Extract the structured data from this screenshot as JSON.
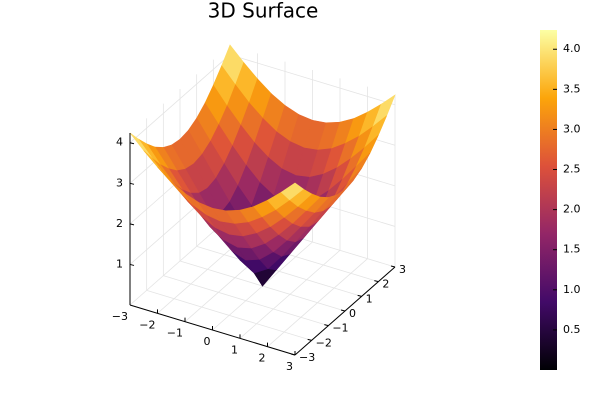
{
  "chart_data": {
    "type": "surface",
    "title": "3D Surface",
    "colormap": "inferno",
    "grid": true,
    "x": [
      -3,
      -2.5,
      -2,
      -1.5,
      -1,
      -0.5,
      0,
      0.5,
      1,
      1.5,
      2,
      2.5,
      3
    ],
    "y": [
      -3,
      -2.5,
      -2,
      -1.5,
      -1,
      -0.5,
      0,
      0.5,
      1,
      1.5,
      2,
      2.5,
      3
    ],
    "z": [
      [
        4.24,
        3.91,
        3.61,
        3.35,
        3.16,
        3.04,
        3,
        3.04,
        3.16,
        3.35,
        3.61,
        3.91,
        4.24
      ],
      [
        3.91,
        3.54,
        3.2,
        2.92,
        2.69,
        2.55,
        2.5,
        2.55,
        2.69,
        2.92,
        3.2,
        3.54,
        3.91
      ],
      [
        3.61,
        3.2,
        2.83,
        2.5,
        2.24,
        2.06,
        2,
        2.06,
        2.24,
        2.5,
        2.83,
        3.2,
        3.61
      ],
      [
        3.35,
        2.92,
        2.5,
        2.12,
        1.8,
        1.58,
        1.5,
        1.58,
        1.8,
        2.12,
        2.5,
        2.92,
        3.35
      ],
      [
        3.16,
        2.69,
        2.24,
        1.8,
        1.41,
        1.12,
        1,
        1.12,
        1.41,
        1.8,
        2.24,
        2.69,
        3.16
      ],
      [
        3.04,
        2.55,
        2.06,
        1.58,
        1.12,
        0.71,
        0.5,
        0.71,
        1.12,
        1.58,
        2.06,
        2.55,
        3.04
      ],
      [
        3,
        2.5,
        2,
        1.5,
        1,
        0.5,
        0,
        0.5,
        1,
        1.5,
        2,
        2.5,
        3
      ],
      [
        3.04,
        2.55,
        2.06,
        1.58,
        1.12,
        0.71,
        0.5,
        0.71,
        1.12,
        1.58,
        2.06,
        2.55,
        3.04
      ],
      [
        3.16,
        2.69,
        2.24,
        1.8,
        1.41,
        1.12,
        1,
        1.12,
        1.41,
        1.8,
        2.24,
        2.69,
        3.16
      ],
      [
        3.35,
        2.92,
        2.5,
        2.12,
        1.8,
        1.58,
        1.5,
        1.58,
        1.8,
        2.12,
        2.5,
        2.92,
        3.35
      ],
      [
        3.61,
        3.2,
        2.83,
        2.5,
        2.24,
        2.06,
        2,
        2.06,
        2.24,
        2.5,
        2.83,
        3.2,
        3.61
      ],
      [
        3.91,
        3.54,
        3.2,
        2.92,
        2.69,
        2.55,
        2.5,
        2.55,
        2.69,
        2.92,
        3.2,
        3.54,
        3.91
      ],
      [
        4.24,
        3.91,
        3.61,
        3.35,
        3.16,
        3.04,
        3,
        3.04,
        3.16,
        3.35,
        3.61,
        3.91,
        4.24
      ]
    ],
    "xlim": [
      -3,
      3
    ],
    "ylim": [
      -3,
      3
    ],
    "zlim": [
      0,
      4.24
    ],
    "xticks": [
      {
        "value": -3,
        "label": "−3"
      },
      {
        "value": -2,
        "label": "−2"
      },
      {
        "value": -1,
        "label": "−1"
      },
      0,
      1,
      2,
      3
    ],
    "yticks": [
      {
        "value": -3,
        "label": "−3"
      },
      {
        "value": -2,
        "label": "−2"
      },
      {
        "value": -1,
        "label": "−1"
      },
      0,
      1,
      2,
      3
    ],
    "zticks": [
      1,
      2,
      3,
      4
    ],
    "clim": [
      0,
      4.24
    ],
    "cticks": [
      0.5,
      {
        "value": 1,
        "label": "1.0"
      },
      1.5,
      {
        "value": 2,
        "label": "2.0"
      },
      2.5,
      {
        "value": 3,
        "label": "3.0"
      },
      3.5,
      {
        "value": 4,
        "label": "4.0"
      }
    ]
  }
}
